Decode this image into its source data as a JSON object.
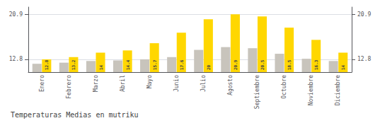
{
  "chart_data": {
    "type": "bar",
    "title": "Temperaturas Medias en mutriku",
    "categories": [
      "Enero",
      "Febrero",
      "Marzo",
      "Abril",
      "Mayo",
      "Junio",
      "Julio",
      "Agosto",
      "Septiembre",
      "Octubre",
      "Noviembre",
      "Diciembre"
    ],
    "series": [
      {
        "color": "#C8C4BC",
        "values": [
          12.0,
          12.2,
          12.5,
          12.6,
          12.8,
          13.2,
          14.5,
          15.0,
          14.8,
          13.8,
          12.9,
          12.5
        ]
      },
      {
        "color": "#FFD700",
        "values": [
          12.8,
          13.2,
          14.0,
          14.4,
          15.7,
          17.6,
          20.0,
          20.9,
          20.5,
          18.5,
          16.3,
          14.0
        ],
        "data_labels": true
      }
    ],
    "ylim": [
      10.5,
      22.2
    ],
    "yticks": [
      12.8,
      20.9
    ],
    "y2lim": [
      10.5,
      22.2
    ],
    "y2ticks": [
      12.8,
      20.9
    ],
    "grid": true
  }
}
